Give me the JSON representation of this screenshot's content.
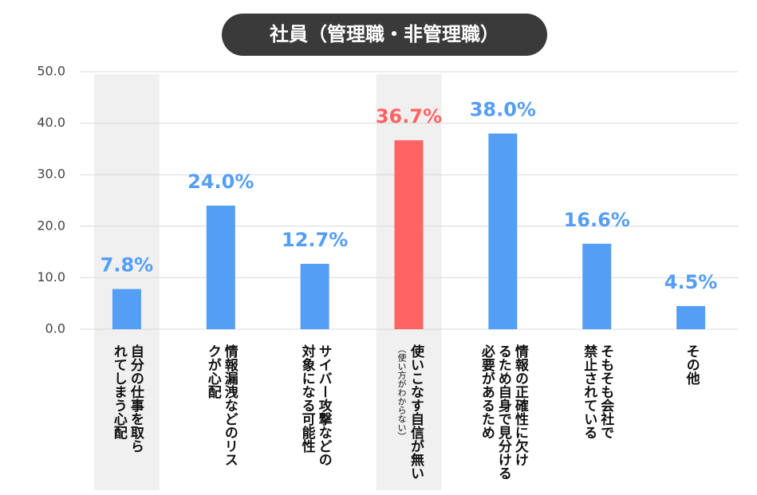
{
  "chart_data": {
    "type": "bar",
    "title": "社員（管理職・非管理職）",
    "categories": [
      "自分の仕事を取ら\nれてしまう心配",
      "情報漏洩などのリス\nクが心配",
      "サイバー攻撃などの\n対象になる可能性",
      "使いこなす自信が無い",
      "情報の正確性に欠け\nるため自身で見分ける\n必要があるため",
      "そもそも会社で\n禁止されている",
      "その他"
    ],
    "annotations": [
      {
        "category": 3,
        "text": "（使い方がわからない）"
      }
    ],
    "values": [
      7.8,
      24.0,
      12.7,
      36.7,
      38.0,
      16.6,
      4.5
    ],
    "value_labels": [
      "7.8%",
      "24.0%",
      "12.7%",
      "36.7%",
      "38.0%",
      "16.6%",
      "4.5%"
    ],
    "colors": [
      "#559ef5",
      "#559ef5",
      "#559ef5",
      "#ff6464",
      "#559ef5",
      "#559ef5",
      "#559ef5"
    ],
    "highlight": [
      0,
      3
    ],
    "ylim": [
      0,
      50
    ],
    "yticks": [
      {
        "value": 0,
        "label": "0.0"
      },
      {
        "value": 10,
        "label": "10.0"
      },
      {
        "value": 20,
        "label": "20.0"
      },
      {
        "value": 30,
        "label": "30.0"
      },
      {
        "value": 40,
        "label": "40.0"
      },
      {
        "value": 50,
        "label": "50.0"
      }
    ],
    "grid": true
  }
}
